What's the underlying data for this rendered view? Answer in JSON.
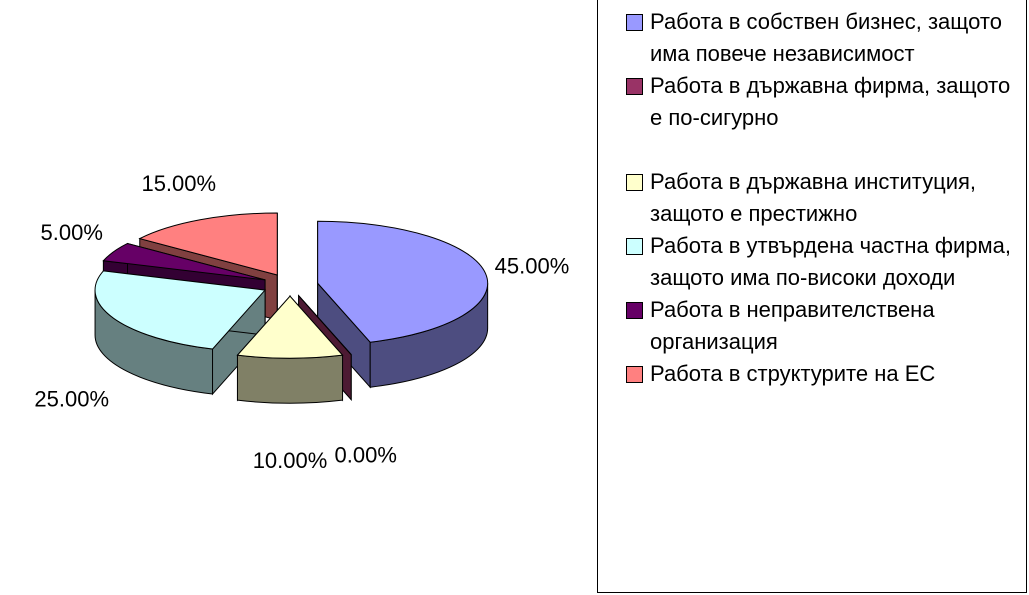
{
  "chart_data": {
    "type": "pie",
    "categories": [
      "Работа в собствен бизнес, защото има повече независимост",
      "Работа в държавна фирма, защото е по-сигурно",
      "Работа в държавна институция, защото е престижно",
      "Работа в утвърдена частна фирма, защото има по-високи доходи",
      "Работа в неправителствена организация",
      "Работа в структурите на ЕС"
    ],
    "values": [
      45,
      0,
      10,
      25,
      5,
      15
    ],
    "value_labels": [
      "45.00%",
      "0.00%",
      "10.00%",
      "25.00%",
      "5.00%",
      "15.00%"
    ],
    "colors": [
      "#9999ff",
      "#993366",
      "#ffffcc",
      "#ccffff",
      "#660066",
      "#ff8080"
    ]
  }
}
